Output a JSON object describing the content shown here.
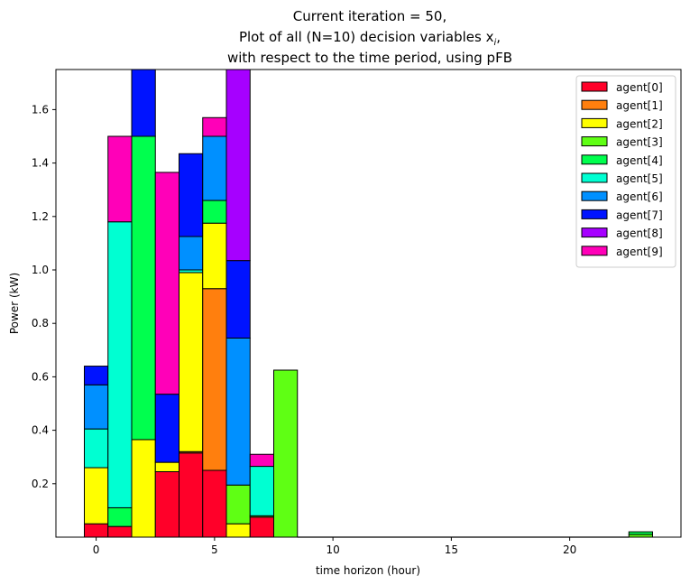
{
  "chart_data": {
    "type": "bar",
    "stacked": true,
    "title_lines": [
      "Current iteration = 50,",
      "Plot of all (N=10) decision variables x",
      "with respect to the time period, using pFB"
    ],
    "title_subscript": "i",
    "title_suffix": ",",
    "xlabel": "time horizon (hour)",
    "ylabel": "Power (kW)",
    "xlim": [
      -1.7,
      24.7
    ],
    "ylim": [
      0,
      1.75
    ],
    "xticks": [
      0,
      5,
      10,
      15,
      20
    ],
    "yticks": [
      0.2,
      0.4,
      0.6,
      0.8,
      1.0,
      1.2,
      1.4,
      1.6
    ],
    "ytick_labels": [
      "0.2",
      "0.4",
      "0.6",
      "0.8",
      "1.0",
      "1.2",
      "1.4",
      "1.6"
    ],
    "legend_position": "top-right",
    "x": [
      0,
      1,
      2,
      3,
      4,
      5,
      6,
      7,
      8,
      9,
      10,
      11,
      12,
      13,
      14,
      15,
      16,
      17,
      18,
      19,
      20,
      21,
      22,
      23
    ],
    "series": [
      {
        "name": "agent[0]",
        "color": "#ff0029",
        "values": [
          0.05,
          0.04,
          0,
          0.245,
          0.315,
          0.25,
          0,
          0.075,
          0,
          0,
          0,
          0,
          0,
          0,
          0,
          0,
          0,
          0,
          0,
          0,
          0,
          0,
          0,
          0
        ]
      },
      {
        "name": "agent[1]",
        "color": "#ff7f0e",
        "values": [
          0,
          0,
          0,
          0,
          0.005,
          0.68,
          0,
          0,
          0,
          0,
          0,
          0,
          0,
          0,
          0,
          0,
          0,
          0,
          0,
          0,
          0,
          0,
          0,
          0
        ]
      },
      {
        "name": "agent[2]",
        "color": "#ffff00",
        "values": [
          0.21,
          0,
          0.365,
          0.035,
          0.67,
          0.245,
          0.05,
          0,
          0,
          0,
          0,
          0,
          0,
          0,
          0,
          0,
          0,
          0,
          0,
          0,
          0,
          0,
          0,
          0
        ]
      },
      {
        "name": "agent[3]",
        "color": "#5fff14",
        "values": [
          0,
          0,
          0,
          0,
          0,
          0,
          0.145,
          0.005,
          0.625,
          0,
          0,
          0,
          0,
          0,
          0,
          0,
          0,
          0,
          0,
          0,
          0,
          0,
          0,
          0.01
        ]
      },
      {
        "name": "agent[4]",
        "color": "#00ff4e",
        "values": [
          0,
          0.07,
          1.135,
          0,
          0,
          0.085,
          0,
          0,
          0,
          0,
          0,
          0,
          0,
          0,
          0,
          0,
          0,
          0,
          0,
          0,
          0,
          0,
          0,
          0.01
        ]
      },
      {
        "name": "agent[5]",
        "color": "#00ffd2",
        "values": [
          0.145,
          1.07,
          0,
          0,
          0.01,
          0,
          0,
          0.185,
          0,
          0,
          0,
          0,
          0,
          0,
          0,
          0,
          0,
          0,
          0,
          0,
          0,
          0,
          0,
          0
        ]
      },
      {
        "name": "agent[6]",
        "color": "#0090ff",
        "values": [
          0.165,
          0,
          0,
          0,
          0.125,
          0.24,
          0.55,
          0,
          0,
          0,
          0,
          0,
          0,
          0,
          0,
          0,
          0,
          0,
          0,
          0,
          0,
          0,
          0,
          0
        ]
      },
      {
        "name": "agent[7]",
        "color": "#0013ff",
        "values": [
          0.07,
          0,
          0.25,
          0.255,
          0.31,
          0,
          0.29,
          0,
          0,
          0,
          0,
          0,
          0,
          0,
          0,
          0,
          0,
          0,
          0,
          0,
          0,
          0,
          0,
          0
        ]
      },
      {
        "name": "agent[8]",
        "color": "#a600ff",
        "values": [
          0,
          0,
          0,
          0,
          0,
          0,
          0.78,
          0,
          0,
          0,
          0,
          0,
          0,
          0,
          0,
          0,
          0,
          0,
          0,
          0,
          0,
          0,
          0,
          0
        ]
      },
      {
        "name": "agent[9]",
        "color": "#ff00b8",
        "values": [
          0,
          0.32,
          0,
          0.83,
          0,
          0.07,
          0,
          0.045,
          0,
          0,
          0,
          0,
          0,
          0,
          0,
          0,
          0,
          0,
          0,
          0,
          0,
          0,
          0,
          0
        ]
      }
    ]
  }
}
